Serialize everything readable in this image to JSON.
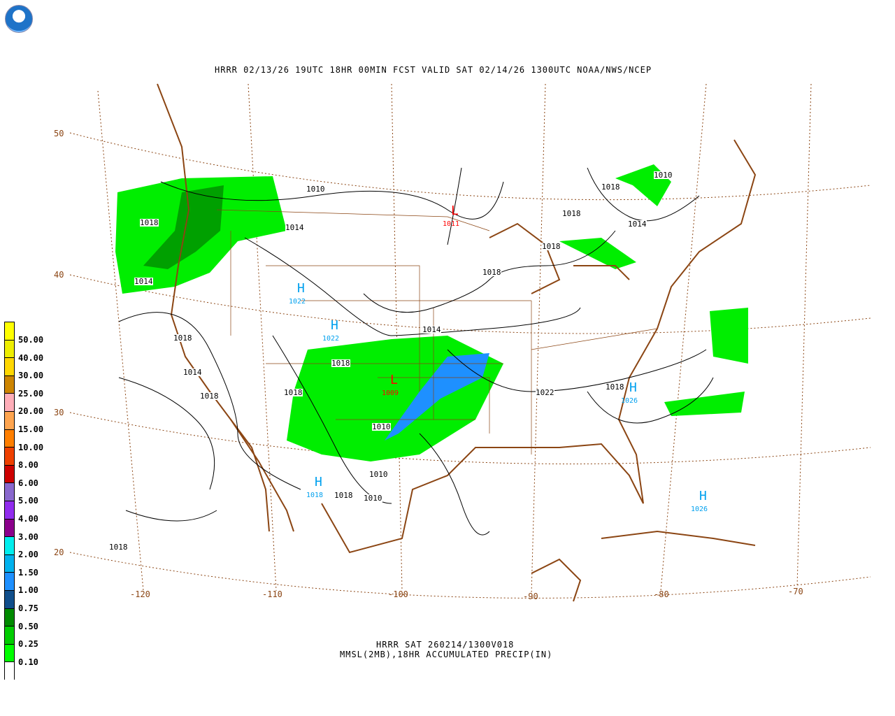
{
  "title": "HRRR 02/13/26 19UTC 18HR 00MIN FCST VALID SAT 02/14/26 1300UTC NOAA/NWS/NCEP",
  "caption": {
    "line1": "HRRR SAT 260214/1300V018",
    "line2": "MMSL(2MB),18HR ACCUMULATED PRECIP(IN)"
  },
  "logo_text": "NOAA",
  "legend": {
    "labels": [
      "50.00",
      "40.00",
      "30.00",
      "25.00",
      "20.00",
      "15.00",
      "10.00",
      "8.00",
      "6.00",
      "5.00",
      "4.00",
      "3.00",
      "2.00",
      "1.50",
      "1.00",
      "0.75",
      "0.50",
      "0.25",
      "0.10"
    ],
    "colors": [
      "#ffff00",
      "#eeee00",
      "#ffd700",
      "#cd8500",
      "#ffaeb9",
      "#ffa54f",
      "#ff7f00",
      "#ee4000",
      "#cd0000",
      "#8968cd",
      "#912cee",
      "#8b008b",
      "#00eeee",
      "#00b2ee",
      "#1e90ff",
      "#104e8b",
      "#008b00",
      "#00cd00",
      "#00ff00",
      "#ffffff"
    ]
  },
  "latitudes": [
    "50",
    "40",
    "30",
    "20"
  ],
  "longitudes": [
    "-120",
    "-110",
    "-100",
    "-90",
    "-80",
    "-70"
  ],
  "isobar_labels": [
    "1010",
    "1018",
    "1014",
    "1014",
    "1018",
    "1014",
    "1018",
    "1018",
    "1018",
    "1014",
    "1018",
    "1018",
    "1018",
    "1014",
    "1018",
    "1010",
    "1010",
    "1010",
    "1022",
    "1018",
    "1018",
    "1018",
    "1010"
  ],
  "pressure_centers": [
    {
      "type": "L",
      "value": "1011",
      "color": "#ff0000"
    },
    {
      "type": "L",
      "value": "1009",
      "color": "#ff0000"
    },
    {
      "type": "H",
      "value": "1022",
      "color": "#00a0ee"
    },
    {
      "type": "H",
      "value": "1022",
      "color": "#00a0ee"
    },
    {
      "type": "H",
      "value": "1018",
      "color": "#00a0ee"
    },
    {
      "type": "H",
      "value": "1026",
      "color": "#00a0ee"
    },
    {
      "type": "H",
      "value": "1026",
      "color": "#00a0ee"
    }
  ],
  "colors": {
    "map_lines": "#8b4513",
    "isobars": "#000000"
  }
}
